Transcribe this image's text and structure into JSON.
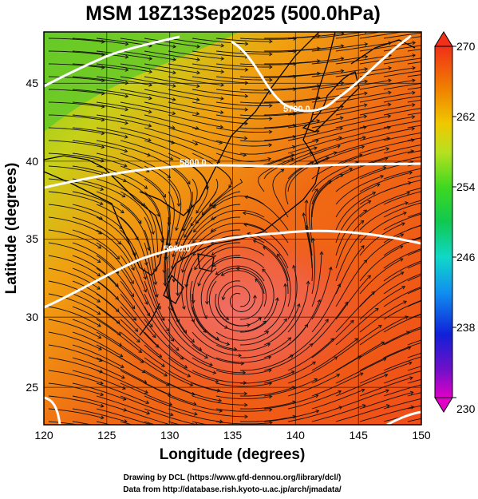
{
  "title": "MSM 18Z13Sep2025 (500.0hPa)",
  "xaxis": {
    "label": "Longitude (degrees)",
    "range": [
      120,
      150
    ],
    "ticks": [
      "120",
      "125",
      "130",
      "135",
      "140",
      "145",
      "150"
    ]
  },
  "yaxis": {
    "label": "Latitude  (degrees)",
    "range": [
      22.4,
      47.6
    ],
    "ticks": [
      "25",
      "30",
      "35",
      "40",
      "45"
    ]
  },
  "colorbar": {
    "range": [
      230,
      270
    ],
    "ticks": [
      "270",
      "262",
      "254",
      "246",
      "238",
      "230"
    ],
    "colors": [
      "#d000c8",
      "#5010c8",
      "#1030e0",
      "#10a0f0",
      "#10d8c0",
      "#10d060",
      "#40e020",
      "#b0e020",
      "#f0c000",
      "#f08000",
      "#f05010",
      "#f03018"
    ]
  },
  "contours": [
    {
      "label": "5700.0",
      "value": 5700.0
    },
    {
      "label": "5800.0",
      "value": 5800.0
    },
    {
      "label": "5900.0",
      "value": 5900.0
    }
  ],
  "credits": {
    "line1": "Drawing by DCL (https://www.gfd-dennou.org/library/dcl/)",
    "line2": "Data from http://database.rish.kyoto-u.ac.jp/arch/jmadata/"
  },
  "chart_data": {
    "type": "heatmap",
    "title": "MSM 18Z13Sep2025 (500.0hPa)",
    "xlabel": "Longitude (degrees)",
    "ylabel": "Latitude  (degrees)",
    "xlim": [
      120,
      150
    ],
    "ylim": [
      22.4,
      47.6
    ],
    "field": "temperature (shaded) with streamlines and geopotential height contours",
    "color_range": [
      230,
      270
    ],
    "contour_levels": [
      5700.0,
      5800.0,
      5900.0
    ],
    "anticyclone_center_approx": {
      "lon": 136.5,
      "lat": 31.5
    }
  }
}
